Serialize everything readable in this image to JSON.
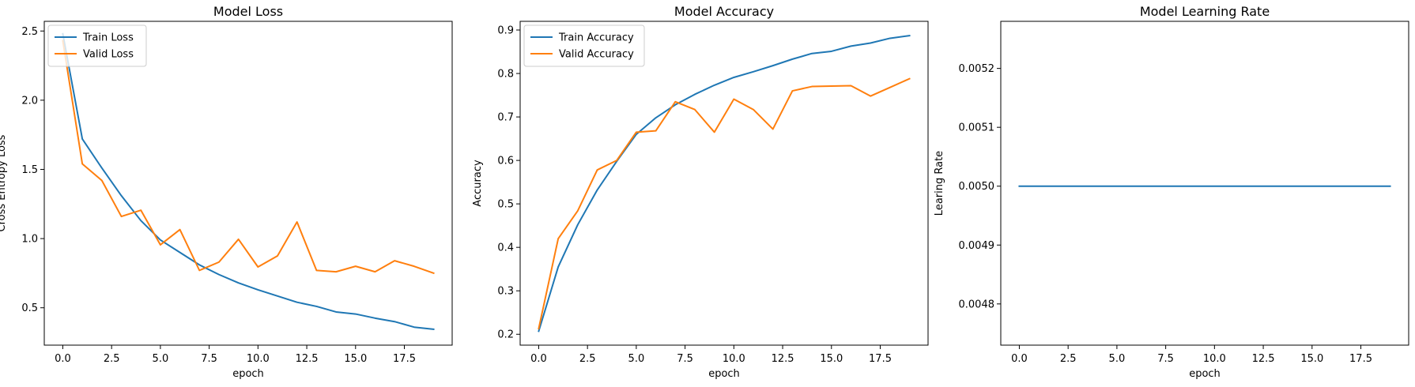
{
  "chart_data": [
    {
      "type": "line",
      "title": "Model Loss",
      "xlabel": "epoch",
      "ylabel": "Cross Entropy Loss",
      "xlim": [
        -0.95,
        19.95
      ],
      "ylim": [
        0.23,
        2.57
      ],
      "xticks": [
        0.0,
        2.5,
        5.0,
        7.5,
        10.0,
        12.5,
        15.0,
        17.5
      ],
      "xtick_labels": [
        "0.0",
        "2.5",
        "5.0",
        "7.5",
        "10.0",
        "12.5",
        "15.0",
        "17.5"
      ],
      "yticks": [
        0.5,
        1.0,
        1.5,
        2.0,
        2.5
      ],
      "ytick_labels": [
        "0.5",
        "1.0",
        "1.5",
        "2.0",
        "2.5"
      ],
      "legend_position": "top-left",
      "x": [
        0,
        1,
        2,
        3,
        4,
        5,
        6,
        7,
        8,
        9,
        10,
        11,
        12,
        13,
        14,
        15,
        16,
        17,
        18,
        19
      ],
      "series": [
        {
          "name": "Train Loss",
          "color": "#1f77b4",
          "values": [
            2.48,
            1.72,
            1.51,
            1.31,
            1.13,
            0.99,
            0.9,
            0.81,
            0.74,
            0.68,
            0.63,
            0.585,
            0.54,
            0.51,
            0.47,
            0.455,
            0.425,
            0.4,
            0.36,
            0.345
          ]
        },
        {
          "name": "Valid Loss",
          "color": "#ff7f0e",
          "values": [
            2.43,
            1.54,
            1.42,
            1.16,
            1.205,
            0.955,
            1.065,
            0.77,
            0.83,
            0.995,
            0.795,
            0.875,
            1.12,
            0.77,
            0.76,
            0.8,
            0.76,
            0.84,
            0.8,
            0.75
          ]
        }
      ]
    },
    {
      "type": "line",
      "title": "Model Accuracy",
      "xlabel": "epoch",
      "ylabel": "Accuracy",
      "xlim": [
        -0.95,
        19.95
      ],
      "ylim": [
        0.175,
        0.92
      ],
      "xticks": [
        0.0,
        2.5,
        5.0,
        7.5,
        10.0,
        12.5,
        15.0,
        17.5
      ],
      "xtick_labels": [
        "0.0",
        "2.5",
        "5.0",
        "7.5",
        "10.0",
        "12.5",
        "15.0",
        "17.5"
      ],
      "yticks": [
        0.2,
        0.3,
        0.4,
        0.5,
        0.6,
        0.7,
        0.8,
        0.9
      ],
      "ytick_labels": [
        "0.2",
        "0.3",
        "0.4",
        "0.5",
        "0.6",
        "0.7",
        "0.8",
        "0.9"
      ],
      "legend_position": "top-left",
      "x": [
        0,
        1,
        2,
        3,
        4,
        5,
        6,
        7,
        8,
        9,
        10,
        11,
        12,
        13,
        14,
        15,
        16,
        17,
        18,
        19
      ],
      "series": [
        {
          "name": "Train Accuracy",
          "color": "#1f77b4",
          "values": [
            0.207,
            0.355,
            0.452,
            0.532,
            0.598,
            0.66,
            0.698,
            0.728,
            0.752,
            0.773,
            0.791,
            0.804,
            0.818,
            0.833,
            0.846,
            0.851,
            0.863,
            0.87,
            0.881,
            0.887
          ]
        },
        {
          "name": "Valid Accuracy",
          "color": "#ff7f0e",
          "values": [
            0.213,
            0.42,
            0.484,
            0.578,
            0.6,
            0.665,
            0.668,
            0.735,
            0.717,
            0.665,
            0.741,
            0.717,
            0.672,
            0.76,
            0.77,
            0.771,
            0.772,
            0.748,
            0.768,
            0.788
          ]
        }
      ]
    },
    {
      "type": "line",
      "title": "Model Learning Rate",
      "xlabel": "epoch",
      "ylabel": "Learing Rate",
      "xlim": [
        -0.95,
        19.95
      ],
      "ylim": [
        0.00473,
        0.00528
      ],
      "xticks": [
        0.0,
        2.5,
        5.0,
        7.5,
        10.0,
        12.5,
        15.0,
        17.5
      ],
      "xtick_labels": [
        "0.0",
        "2.5",
        "5.0",
        "7.5",
        "10.0",
        "12.5",
        "15.0",
        "17.5"
      ],
      "yticks": [
        0.0048,
        0.0049,
        0.005,
        0.0051,
        0.0052
      ],
      "ytick_labels": [
        "0.0048",
        "0.0049",
        "0.0050",
        "0.0051",
        "0.0052"
      ],
      "legend_position": "none",
      "x": [
        0,
        1,
        2,
        3,
        4,
        5,
        6,
        7,
        8,
        9,
        10,
        11,
        12,
        13,
        14,
        15,
        16,
        17,
        18,
        19
      ],
      "series": [
        {
          "color": "#1f77b4",
          "values": [
            0.005,
            0.005,
            0.005,
            0.005,
            0.005,
            0.005,
            0.005,
            0.005,
            0.005,
            0.005,
            0.005,
            0.005,
            0.005,
            0.005,
            0.005,
            0.005,
            0.005,
            0.005,
            0.005,
            0.005
          ]
        }
      ]
    }
  ]
}
